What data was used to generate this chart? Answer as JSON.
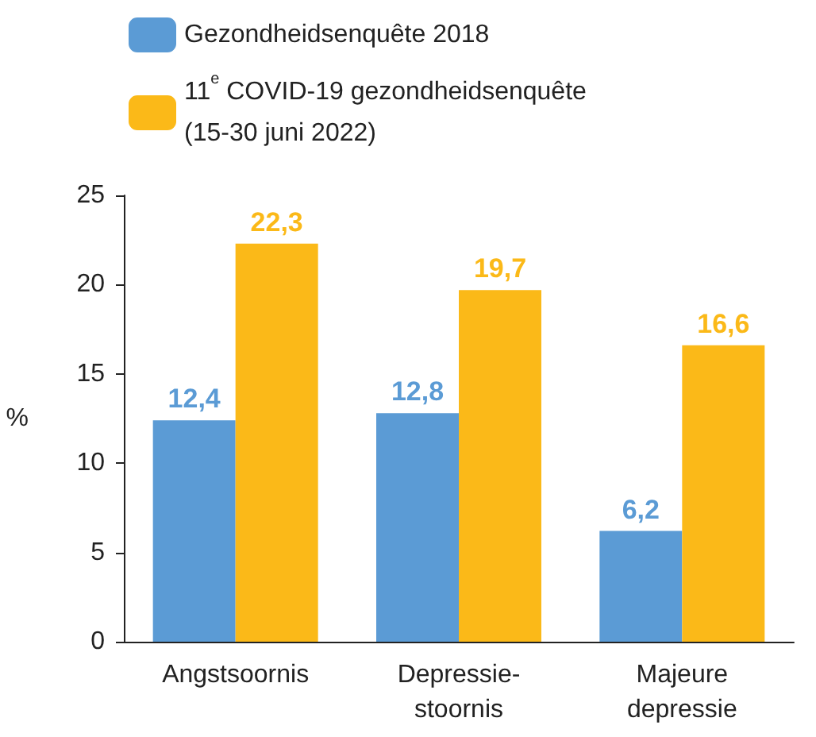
{
  "chart_data": {
    "type": "bar",
    "ylabel": "%",
    "categories": [
      "Angstsoornis",
      "Depressie-\nstoornis",
      "Majeure\ndepressie"
    ],
    "series": [
      {
        "name": "Gezondheidsenquête 2018",
        "color": "#5b9bd5",
        "values": [
          12.4,
          12.8,
          6.2
        ],
        "value_labels": [
          "12,4",
          "12,8",
          "6,2"
        ]
      },
      {
        "name": "11$^{e}$ COVID-19 gezondheidsenquête\n(15-30 juni 2022)",
        "color": "#fbb918",
        "values": [
          22.3,
          19.7,
          16.6
        ],
        "value_labels": [
          "22,3",
          "19,7",
          "16,6"
        ]
      }
    ],
    "ylim": [
      0,
      25
    ],
    "yticks": [
      0,
      5,
      10,
      15,
      20,
      25
    ],
    "grid": false,
    "legend": "top left"
  }
}
